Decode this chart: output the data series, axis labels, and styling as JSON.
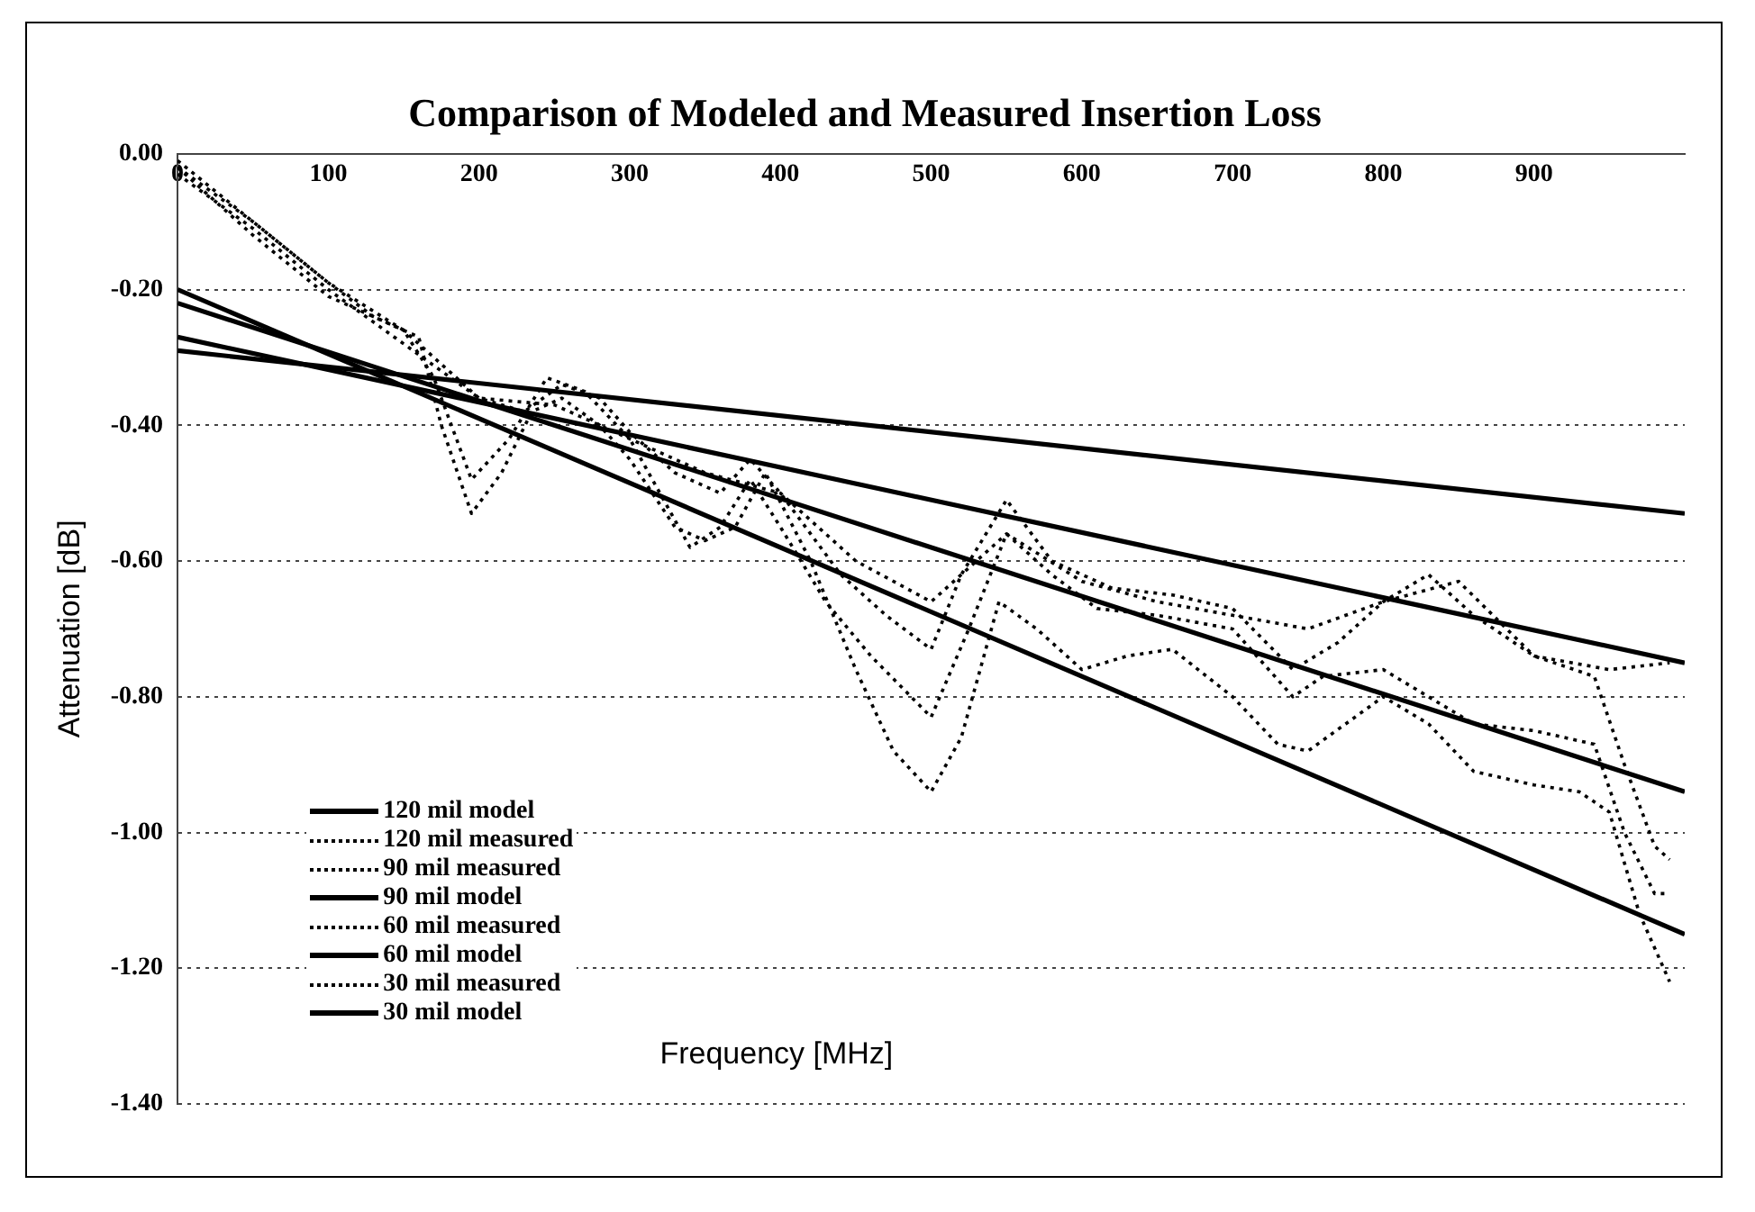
{
  "chart_data": {
    "type": "line",
    "title": "Comparison of Modeled and Measured Insertion Loss",
    "xlabel": "Frequency [MHz]",
    "ylabel": "Attenuation [dB]",
    "xlim": [
      0,
      1000
    ],
    "xticks": [
      0,
      100,
      200,
      300,
      400,
      500,
      600,
      700,
      800,
      900
    ],
    "ylim": [
      -1.4,
      0
    ],
    "yticks": [
      {
        "value": 0,
        "label": "0.00"
      },
      {
        "value": -0.2,
        "label": "-0.20"
      },
      {
        "value": -0.4,
        "label": "-0.40"
      },
      {
        "value": -0.6,
        "label": "-0.60"
      },
      {
        "value": -0.8,
        "label": "-0.80"
      },
      {
        "value": -1.0,
        "label": "-1.00"
      },
      {
        "value": -1.2,
        "label": "-1.20"
      },
      {
        "value": -1.4,
        "label": "-1.40"
      }
    ],
    "grid": "y",
    "legend": "bottom left",
    "marker": "none",
    "series": [
      {
        "name": "120 mil model",
        "color": "#000000",
        "line_style": "solid",
        "x": [
          0,
          1000
        ],
        "values": [
          -0.29,
          -0.53
        ]
      },
      {
        "name": "120 mil measured",
        "color": "#000000",
        "line_style": "dotted",
        "x": [
          0,
          50,
          100,
          150,
          200,
          250,
          300,
          350,
          400,
          450,
          500,
          550,
          600,
          650,
          700,
          750,
          800,
          850,
          900,
          950,
          990
        ],
        "values": [
          -0.03,
          -0.11,
          -0.2,
          -0.28,
          -0.36,
          -0.37,
          -0.42,
          -0.47,
          -0.5,
          -0.6,
          -0.66,
          -0.56,
          -0.63,
          -0.66,
          -0.68,
          -0.7,
          -0.66,
          -0.63,
          -0.74,
          -0.76,
          -0.75
        ]
      },
      {
        "name": "90 mil measured",
        "color": "#000000",
        "line_style": "dotted",
        "x": [
          0,
          50,
          100,
          150,
          180,
          200,
          230,
          255,
          280,
          300,
          330,
          360,
          380,
          400,
          440,
          470,
          500,
          520,
          550,
          580,
          620,
          660,
          700,
          740,
          770,
          800,
          830,
          860,
          900,
          940,
          960,
          980,
          990
        ],
        "values": [
          -0.02,
          -0.12,
          -0.21,
          -0.26,
          -0.32,
          -0.36,
          -0.38,
          -0.34,
          -0.36,
          -0.41,
          -0.47,
          -0.5,
          -0.45,
          -0.5,
          -0.62,
          -0.68,
          -0.73,
          -0.62,
          -0.51,
          -0.6,
          -0.64,
          -0.65,
          -0.67,
          -0.76,
          -0.72,
          -0.66,
          -0.62,
          -0.68,
          -0.74,
          -0.77,
          -0.9,
          -1.02,
          -1.04
        ]
      },
      {
        "name": "90 mil model",
        "color": "#000000",
        "line_style": "solid",
        "x": [
          0,
          1000
        ],
        "values": [
          -0.27,
          -0.75
        ]
      },
      {
        "name": "60 mil measured",
        "color": "#000000",
        "line_style": "dotted",
        "x": [
          0,
          50,
          100,
          150,
          170,
          195,
          220,
          245,
          270,
          300,
          320,
          340,
          360,
          380,
          400,
          430,
          460,
          500,
          525,
          550,
          580,
          610,
          650,
          700,
          740,
          760,
          800,
          830,
          860,
          900,
          940,
          960,
          980,
          990
        ],
        "values": [
          -0.01,
          -0.1,
          -0.19,
          -0.26,
          -0.33,
          -0.48,
          -0.42,
          -0.33,
          -0.35,
          -0.42,
          -0.5,
          -0.58,
          -0.55,
          -0.48,
          -0.55,
          -0.66,
          -0.74,
          -0.83,
          -0.7,
          -0.56,
          -0.62,
          -0.67,
          -0.68,
          -0.7,
          -0.8,
          -0.77,
          -0.76,
          -0.8,
          -0.84,
          -0.85,
          -0.87,
          -1.0,
          -1.09,
          -1.09
        ]
      },
      {
        "name": "60 mil model",
        "color": "#000000",
        "line_style": "solid",
        "x": [
          0,
          1000
        ],
        "values": [
          -0.22,
          -0.94
        ]
      },
      {
        "name": "30 mil measured",
        "color": "#000000",
        "line_style": "dotted",
        "x": [
          0,
          50,
          100,
          130,
          160,
          175,
          195,
          215,
          235,
          255,
          280,
          300,
          330,
          350,
          370,
          390,
          420,
          450,
          475,
          500,
          520,
          545,
          570,
          600,
          630,
          660,
          700,
          730,
          750,
          775,
          800,
          830,
          860,
          900,
          930,
          950,
          970,
          990
        ],
        "values": [
          -0.02,
          -0.1,
          -0.19,
          -0.24,
          -0.27,
          -0.4,
          -0.53,
          -0.47,
          -0.38,
          -0.36,
          -0.4,
          -0.45,
          -0.55,
          -0.57,
          -0.55,
          -0.47,
          -0.6,
          -0.76,
          -0.88,
          -0.94,
          -0.86,
          -0.66,
          -0.7,
          -0.76,
          -0.74,
          -0.73,
          -0.8,
          -0.87,
          -0.88,
          -0.84,
          -0.8,
          -0.84,
          -0.91,
          -0.93,
          -0.94,
          -0.97,
          -1.12,
          -1.22
        ]
      },
      {
        "name": "30 mil model",
        "color": "#000000",
        "line_style": "solid",
        "x": [
          0,
          1000
        ],
        "values": [
          -0.2,
          -1.15
        ]
      }
    ]
  }
}
